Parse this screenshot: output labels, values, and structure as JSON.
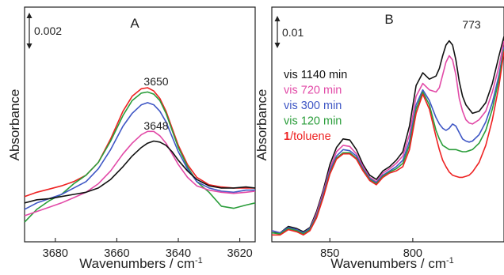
{
  "chart_data": [
    {
      "type": "line",
      "panel_label": "A",
      "xlabel": "Wavenumbers / cm",
      "xlabel_sup": "-1",
      "ylabel": "Absorbance",
      "x_reversed": true,
      "xlim": [
        3690,
        3615
      ],
      "ylim": [
        0,
        10
      ],
      "x_ticks": [
        3680,
        3660,
        3640,
        3620
      ],
      "scale_bar": {
        "label": "0.002",
        "value": 0.002
      },
      "annotations": [
        {
          "text": "3650",
          "x": 3650,
          "y": 7.0
        },
        {
          "text": "3648",
          "x": 3648,
          "y": 5.1
        }
      ],
      "series": [
        {
          "color": "#ee2222",
          "x": [
            3690,
            3686,
            3682,
            3678,
            3674,
            3670,
            3666,
            3662,
            3658,
            3655,
            3652,
            3650,
            3648,
            3646,
            3644,
            3642,
            3640,
            3637,
            3634,
            3630,
            3626,
            3622,
            3618,
            3615
          ],
          "y": [
            1.9,
            2.1,
            2.25,
            2.4,
            2.6,
            2.9,
            3.5,
            4.6,
            5.9,
            6.6,
            6.95,
            7.0,
            6.85,
            6.5,
            5.9,
            5.1,
            4.3,
            3.4,
            2.8,
            2.45,
            2.35,
            2.3,
            2.3,
            2.3
          ]
        },
        {
          "color": "#2a9d3a",
          "x": [
            3690,
            3686,
            3682,
            3678,
            3674,
            3670,
            3666,
            3662,
            3658,
            3655,
            3652,
            3650,
            3648,
            3646,
            3644,
            3642,
            3640,
            3637,
            3634,
            3630,
            3626,
            3622,
            3618,
            3615
          ],
          "y": [
            0.7,
            1.3,
            1.7,
            2.0,
            2.5,
            2.9,
            3.5,
            4.5,
            5.7,
            6.4,
            6.75,
            6.8,
            6.7,
            6.4,
            5.8,
            5.0,
            4.2,
            3.3,
            2.6,
            2.1,
            1.45,
            1.35,
            1.5,
            1.6
          ]
        },
        {
          "color": "#3f57c5",
          "x": [
            3690,
            3686,
            3682,
            3678,
            3674,
            3670,
            3666,
            3662,
            3658,
            3655,
            3652,
            3650,
            3648,
            3646,
            3644,
            3642,
            3640,
            3637,
            3634,
            3630,
            3626,
            3622,
            3618,
            3615
          ],
          "y": [
            1.3,
            1.6,
            1.8,
            2.0,
            2.3,
            2.6,
            3.2,
            4.1,
            5.2,
            5.8,
            6.2,
            6.3,
            6.2,
            5.9,
            5.4,
            4.7,
            4.0,
            3.2,
            2.6,
            2.3,
            2.15,
            2.1,
            2.2,
            2.2
          ]
        },
        {
          "color": "#e24aa7",
          "x": [
            3690,
            3686,
            3682,
            3678,
            3674,
            3670,
            3666,
            3662,
            3658,
            3655,
            3652,
            3650,
            3648,
            3646,
            3644,
            3642,
            3640,
            3637,
            3634,
            3630,
            3626,
            3622,
            3618,
            3615
          ],
          "y": [
            1.0,
            1.2,
            1.4,
            1.6,
            1.85,
            2.1,
            2.5,
            3.1,
            3.9,
            4.4,
            4.8,
            4.95,
            4.95,
            4.75,
            4.4,
            3.9,
            3.4,
            2.8,
            2.4,
            2.2,
            2.1,
            2.05,
            2.1,
            2.15
          ]
        },
        {
          "color": "#111111",
          "x": [
            3690,
            3686,
            3682,
            3678,
            3674,
            3670,
            3666,
            3662,
            3658,
            3655,
            3652,
            3650,
            3648,
            3646,
            3644,
            3642,
            3640,
            3637,
            3634,
            3630,
            3626,
            3622,
            3618,
            3615
          ],
          "y": [
            1.6,
            1.75,
            1.8,
            1.9,
            2.0,
            2.1,
            2.3,
            2.7,
            3.3,
            3.8,
            4.2,
            4.4,
            4.5,
            4.45,
            4.3,
            4.0,
            3.6,
            3.1,
            2.7,
            2.4,
            2.3,
            2.3,
            2.35,
            2.3
          ]
        }
      ]
    },
    {
      "type": "line",
      "panel_label": "B",
      "xlabel": "Wavenumbers / cm",
      "xlabel_sup": "-1",
      "ylabel": "Absorbance",
      "x_reversed": true,
      "xlim": [
        885,
        745
      ],
      "ylim": [
        0,
        10
      ],
      "x_ticks": [
        850,
        800
      ],
      "scale_bar": {
        "label": "0.01",
        "value": 0.01
      },
      "annotations": [
        {
          "text": "773",
          "x": 773,
          "y": 9.2
        }
      ],
      "legend": {
        "placement": "center-left",
        "entries": [
          {
            "prefix": "vis",
            "text": " 1140 min",
            "color": "#111111"
          },
          {
            "prefix": "vis",
            "text": " 720 min",
            "color": "#e24aa7"
          },
          {
            "prefix": "vis",
            "text": " 300 min",
            "color": "#3f57c5"
          },
          {
            "prefix": "vis",
            "text": " 120 min",
            "color": "#2a9d3a"
          },
          {
            "prefix": "1",
            "text": "/toluene",
            "color": "#ee2222",
            "prefix_bold": true
          }
        ]
      },
      "series": [
        {
          "name": "vis 1140 min",
          "color": "#111111",
          "x": [
            885,
            880,
            875,
            870,
            866,
            862,
            858,
            854,
            850,
            846,
            842,
            838,
            834,
            830,
            826,
            822,
            818,
            814,
            810,
            806,
            802,
            798,
            794,
            790,
            786,
            784,
            782,
            780,
            778,
            776,
            774,
            772,
            770,
            768,
            766,
            764,
            760,
            756,
            752,
            748,
            745
          ],
          "y": [
            0.2,
            0.2,
            0.5,
            0.4,
            0.25,
            0.45,
            1.2,
            2.2,
            3.4,
            4.2,
            4.6,
            4.55,
            4.1,
            3.4,
            2.9,
            2.7,
            3.1,
            3.3,
            3.6,
            4.0,
            5.2,
            7.1,
            7.7,
            7.4,
            7.55,
            7.9,
            8.5,
            9.0,
            9.2,
            9.0,
            8.3,
            7.3,
            6.6,
            6.2,
            6.0,
            5.8,
            5.9,
            6.3,
            7.2,
            8.5,
            9.4
          ]
        },
        {
          "name": "vis 720 min",
          "color": "#e24aa7",
          "x": [
            885,
            880,
            875,
            870,
            866,
            862,
            858,
            854,
            850,
            846,
            842,
            838,
            834,
            830,
            826,
            822,
            818,
            814,
            810,
            806,
            802,
            798,
            794,
            790,
            786,
            784,
            782,
            780,
            778,
            776,
            774,
            772,
            770,
            768,
            766,
            764,
            760,
            756,
            752,
            748,
            745
          ],
          "y": [
            0.3,
            0.2,
            0.4,
            0.35,
            0.2,
            0.4,
            1.1,
            2.1,
            3.2,
            4.0,
            4.3,
            4.25,
            3.9,
            3.3,
            2.8,
            2.6,
            3.0,
            3.2,
            3.45,
            3.8,
            4.8,
            6.6,
            7.2,
            6.9,
            6.8,
            7.0,
            7.6,
            8.2,
            8.5,
            8.3,
            7.6,
            6.5,
            5.9,
            5.5,
            5.35,
            5.3,
            5.5,
            5.9,
            6.8,
            8.0,
            9.2
          ]
        },
        {
          "name": "vis 300 min",
          "color": "#3f57c5",
          "x": [
            885,
            880,
            875,
            870,
            866,
            862,
            858,
            854,
            850,
            846,
            842,
            838,
            834,
            830,
            826,
            822,
            818,
            814,
            810,
            806,
            802,
            798,
            794,
            790,
            786,
            784,
            782,
            780,
            778,
            776,
            774,
            772,
            770,
            768,
            766,
            764,
            760,
            756,
            752,
            748,
            745
          ],
          "y": [
            0.3,
            0.2,
            0.45,
            0.35,
            0.2,
            0.4,
            1.0,
            2.0,
            3.1,
            3.8,
            4.1,
            4.05,
            3.8,
            3.2,
            2.75,
            2.55,
            2.9,
            3.1,
            3.3,
            3.6,
            4.5,
            6.2,
            6.9,
            6.4,
            5.6,
            5.3,
            5.1,
            5.0,
            5.1,
            5.3,
            5.2,
            4.9,
            4.6,
            4.5,
            4.45,
            4.5,
            4.8,
            5.4,
            6.3,
            7.6,
            8.9
          ]
        },
        {
          "name": "vis 120 min",
          "color": "#2a9d3a",
          "x": [
            885,
            880,
            875,
            870,
            866,
            862,
            858,
            854,
            850,
            846,
            842,
            838,
            834,
            830,
            826,
            822,
            818,
            814,
            810,
            806,
            802,
            798,
            794,
            790,
            786,
            784,
            782,
            780,
            778,
            776,
            774,
            772,
            770,
            768,
            766,
            764,
            760,
            756,
            752,
            748,
            745
          ],
          "y": [
            0.2,
            0.15,
            0.4,
            0.3,
            0.15,
            0.35,
            0.95,
            1.9,
            3.0,
            3.7,
            3.95,
            3.95,
            3.7,
            3.15,
            2.7,
            2.5,
            2.85,
            3.05,
            3.2,
            3.45,
            4.3,
            6.0,
            6.8,
            6.2,
            5.0,
            4.6,
            4.3,
            4.2,
            4.1,
            4.1,
            4.1,
            4.05,
            4.0,
            4.0,
            4.05,
            4.1,
            4.4,
            5.0,
            6.0,
            7.4,
            8.8
          ]
        },
        {
          "name": "1/toluene",
          "color": "#ee2222",
          "x": [
            885,
            880,
            875,
            870,
            866,
            862,
            858,
            854,
            850,
            846,
            842,
            838,
            834,
            830,
            826,
            822,
            818,
            814,
            810,
            806,
            802,
            798,
            794,
            790,
            786,
            784,
            782,
            780,
            778,
            776,
            774,
            772,
            770,
            768,
            766,
            764,
            760,
            756,
            752,
            748,
            745
          ],
          "y": [
            0.1,
            0.1,
            0.35,
            0.25,
            0.1,
            0.3,
            0.9,
            1.85,
            2.95,
            3.65,
            3.9,
            3.9,
            3.65,
            3.1,
            2.65,
            2.45,
            2.8,
            3.0,
            3.1,
            3.3,
            4.1,
            5.8,
            6.7,
            6.0,
            4.7,
            4.1,
            3.6,
            3.3,
            3.05,
            2.9,
            2.85,
            2.8,
            2.8,
            2.85,
            2.9,
            3.05,
            3.5,
            4.3,
            5.5,
            7.1,
            8.7
          ]
        }
      ]
    }
  ]
}
